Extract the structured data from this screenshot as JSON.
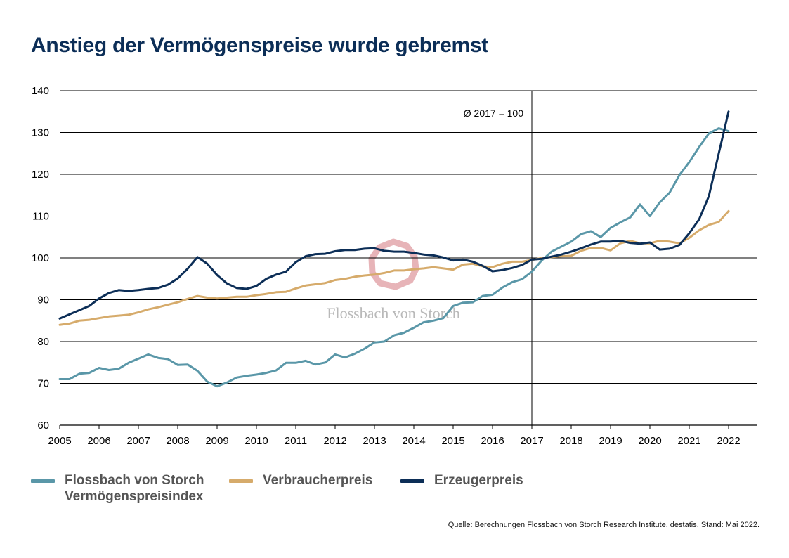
{
  "title": "Anstieg der Vermögenspreise wurde gebremst",
  "source": "Quelle: Berechnungen Flossbach von Storch Research Institute, destatis. Stand: Mai 2022.",
  "watermark": "Flossbach von Storch",
  "legend": [
    {
      "label": "Flossbach von Storch Vermögenspreisindex",
      "color": "#5a97a8"
    },
    {
      "label": "Verbraucherpreis",
      "color": "#d6ab6b"
    },
    {
      "label": "Erzeugerpreis",
      "color": "#0c2e57"
    }
  ],
  "chart_data": {
    "type": "line",
    "xlim": [
      2005,
      2022.75
    ],
    "ylim": [
      60,
      140
    ],
    "x_ticks": [
      "2005",
      "2006",
      "2007",
      "2008",
      "2009",
      "2010",
      "2011",
      "2012",
      "2013",
      "2014",
      "2015",
      "2016",
      "2017",
      "2018",
      "2019",
      "2020",
      "2021",
      "2022"
    ],
    "y_ticks": [
      "60",
      "70",
      "80",
      "90",
      "100",
      "110",
      "120",
      "130",
      "140"
    ],
    "grid": "horizontal",
    "legend_position": "bottom",
    "annotation": {
      "text": "Ø 2017 = 100",
      "x": 2017
    },
    "series": [
      {
        "name": "Flossbach von Storch Vermögenspreisindex",
        "color": "#5a97a8",
        "x": [
          2005,
          2005.25,
          2005.5,
          2005.75,
          2006,
          2006.25,
          2006.5,
          2006.75,
          2007,
          2007.25,
          2007.5,
          2007.75,
          2008,
          2008.25,
          2008.5,
          2008.75,
          2009,
          2009.25,
          2009.5,
          2009.75,
          2010,
          2010.25,
          2010.5,
          2010.75,
          2011,
          2011.25,
          2011.5,
          2011.75,
          2012,
          2012.25,
          2012.5,
          2012.75,
          2013,
          2013.25,
          2013.5,
          2013.75,
          2014,
          2014.25,
          2014.5,
          2014.75,
          2015,
          2015.25,
          2015.5,
          2015.75,
          2016,
          2016.25,
          2016.5,
          2016.75,
          2017,
          2017.25,
          2017.5,
          2017.75,
          2018,
          2018.25,
          2018.5,
          2018.75,
          2019,
          2019.25,
          2019.5,
          2019.75,
          2020,
          2020.25,
          2020.5,
          2020.75,
          2021,
          2021.25,
          2021.5,
          2021.75,
          2022
        ],
        "values": [
          71,
          71,
          72.3,
          72.5,
          73.7,
          73.2,
          73.5,
          74.9,
          75.9,
          76.9,
          76.1,
          75.8,
          74.4,
          74.5,
          73,
          70.4,
          69.3,
          70.2,
          71.4,
          71.8,
          72.1,
          72.5,
          73.1,
          74.9,
          74.9,
          75.4,
          74.5,
          75,
          76.9,
          76.2,
          77.1,
          78.3,
          79.8,
          80,
          81.5,
          82.1,
          83.3,
          84.6,
          85,
          85.6,
          88.5,
          89.3,
          89.4,
          90.9,
          91.2,
          92.9,
          94.2,
          94.9,
          96.7,
          99.4,
          101.5,
          102.7,
          103.9,
          105.7,
          106.4,
          105,
          107.2,
          108.5,
          109.7,
          112.8,
          110,
          113.3,
          115.6,
          119.8,
          122.9,
          126.5,
          129.8,
          131,
          130.3
        ]
      },
      {
        "name": "Verbraucherpreis",
        "color": "#d6ab6b",
        "x": [
          2005,
          2005.25,
          2005.5,
          2005.75,
          2006,
          2006.25,
          2006.5,
          2006.75,
          2007,
          2007.25,
          2007.5,
          2007.75,
          2008,
          2008.25,
          2008.5,
          2008.75,
          2009,
          2009.25,
          2009.5,
          2009.75,
          2010,
          2010.25,
          2010.5,
          2010.75,
          2011,
          2011.25,
          2011.5,
          2011.75,
          2012,
          2012.25,
          2012.5,
          2012.75,
          2013,
          2013.25,
          2013.5,
          2013.75,
          2014,
          2014.25,
          2014.5,
          2014.75,
          2015,
          2015.25,
          2015.5,
          2015.75,
          2016,
          2016.25,
          2016.5,
          2016.75,
          2017,
          2017.25,
          2017.5,
          2017.75,
          2018,
          2018.25,
          2018.5,
          2018.75,
          2019,
          2019.25,
          2019.5,
          2019.75,
          2020,
          2020.25,
          2020.5,
          2020.75,
          2021,
          2021.25,
          2021.5,
          2021.75,
          2022
        ],
        "values": [
          84,
          84.3,
          85,
          85.2,
          85.6,
          86,
          86.2,
          86.4,
          87,
          87.7,
          88.2,
          88.8,
          89.4,
          90.2,
          90.9,
          90.5,
          90.3,
          90.5,
          90.7,
          90.7,
          91.1,
          91.4,
          91.8,
          91.9,
          92.7,
          93.4,
          93.7,
          94,
          94.7,
          95,
          95.5,
          95.8,
          96,
          96.4,
          97,
          97,
          97.3,
          97.5,
          97.8,
          97.5,
          97.2,
          98.4,
          98.6,
          98,
          97.8,
          98.6,
          99.1,
          99.1,
          99.5,
          100,
          100.2,
          100.4,
          100.5,
          101.7,
          102.4,
          102.4,
          101.8,
          103.5,
          104.1,
          103.5,
          103.5,
          104.1,
          103.9,
          103.5,
          104.8,
          106.6,
          107.9,
          108.6,
          111.2
        ]
      },
      {
        "name": "Erzeugerpreis",
        "color": "#0c2e57",
        "x": [
          2005,
          2005.25,
          2005.5,
          2005.75,
          2006,
          2006.25,
          2006.5,
          2006.75,
          2007,
          2007.25,
          2007.5,
          2007.75,
          2008,
          2008.25,
          2008.5,
          2008.75,
          2009,
          2009.25,
          2009.5,
          2009.75,
          2010,
          2010.25,
          2010.5,
          2010.75,
          2011,
          2011.25,
          2011.5,
          2011.75,
          2012,
          2012.25,
          2012.5,
          2012.75,
          2013,
          2013.25,
          2013.5,
          2013.75,
          2014,
          2014.25,
          2014.5,
          2014.75,
          2015,
          2015.25,
          2015.5,
          2015.75,
          2016,
          2016.25,
          2016.5,
          2016.75,
          2017,
          2017.25,
          2017.5,
          2017.75,
          2018,
          2018.25,
          2018.5,
          2018.75,
          2019,
          2019.25,
          2019.5,
          2019.75,
          2020,
          2020.25,
          2020.5,
          2020.75,
          2021,
          2021.25,
          2021.5,
          2021.75,
          2022
        ],
        "values": [
          85.5,
          86.5,
          87.5,
          88.5,
          90.3,
          91.6,
          92.3,
          92.1,
          92.3,
          92.6,
          92.8,
          93.6,
          95.1,
          97.4,
          100.2,
          98.6,
          95.9,
          93.9,
          92.8,
          92.6,
          93.3,
          95,
          96,
          96.7,
          99,
          100.4,
          100.9,
          101,
          101.6,
          101.9,
          101.9,
          102.2,
          102.3,
          101.7,
          101.5,
          101.5,
          101.2,
          100.8,
          100.6,
          100.1,
          99.4,
          99.6,
          99.1,
          98.1,
          96.8,
          97.1,
          97.6,
          98.3,
          99.6,
          99.8,
          100.3,
          100.8,
          101.5,
          102.3,
          103.2,
          103.9,
          103.9,
          104.1,
          103.6,
          103.4,
          103.7,
          102,
          102.2,
          103.1,
          105.9,
          109.2,
          114.8,
          125,
          135
        ]
      }
    ]
  }
}
